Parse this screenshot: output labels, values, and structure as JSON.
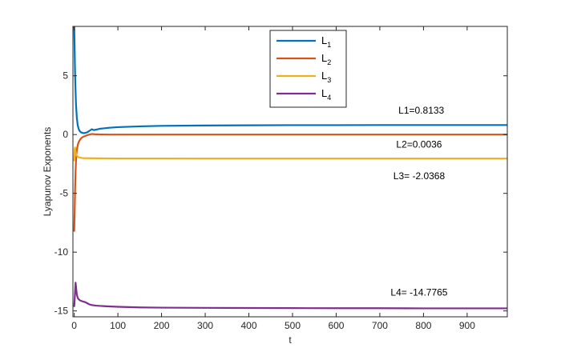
{
  "chart_data": {
    "type": "line",
    "xlabel": "t",
    "ylabel": "Lyapunov Exponents",
    "xlim": [
      -3,
      992
    ],
    "ylim": [
      -15.5,
      9.2
    ],
    "xticks": [
      0,
      100,
      200,
      300,
      400,
      500,
      600,
      700,
      800,
      900
    ],
    "yticks": [
      -15,
      -10,
      -5,
      0,
      5
    ],
    "grid": false,
    "legend_position": "top-center",
    "series": [
      {
        "name": "L",
        "subscript": "1",
        "color": "#0072BD",
        "x": [
          0,
          2,
          4,
          6,
          8,
          10,
          12,
          15,
          18,
          22,
          26,
          30,
          35,
          40,
          45,
          50,
          60,
          80,
          100,
          150,
          200,
          300,
          400,
          500,
          600,
          700,
          800,
          900,
          992
        ],
        "y": [
          9.2,
          5.0,
          2.6,
          1.4,
          0.8,
          0.5,
          0.32,
          0.2,
          0.15,
          0.12,
          0.15,
          0.2,
          0.32,
          0.45,
          0.38,
          0.42,
          0.5,
          0.58,
          0.63,
          0.7,
          0.74,
          0.77,
          0.79,
          0.8,
          0.8,
          0.81,
          0.81,
          0.81,
          0.81
        ]
      },
      {
        "name": "L",
        "subscript": "2",
        "color": "#D95319",
        "x": [
          0,
          1,
          2,
          3,
          4,
          5,
          6,
          8,
          10,
          13,
          16,
          20,
          25,
          30,
          40,
          50,
          60,
          80,
          100,
          200,
          300,
          500,
          700,
          992
        ],
        "y": [
          -8.2,
          -6.5,
          -4.6,
          -3.2,
          -2.3,
          -1.7,
          -1.3,
          -0.9,
          -0.65,
          -0.45,
          -0.3,
          -0.2,
          -0.12,
          -0.05,
          0.05,
          0.02,
          0.01,
          0.0,
          0.0,
          0.0,
          0.0,
          0.0,
          0.0,
          0.0
        ]
      },
      {
        "name": "L",
        "subscript": "3",
        "color": "#EDB120",
        "x": [
          0,
          1,
          2,
          3,
          4,
          5,
          7,
          9,
          12,
          16,
          20,
          30,
          50,
          100,
          200,
          300,
          500,
          700,
          992
        ],
        "y": [
          -2.2,
          -1.3,
          -1.1,
          -1.4,
          -1.6,
          -1.75,
          -1.85,
          -1.9,
          -1.95,
          -1.98,
          -2.0,
          -2.01,
          -2.02,
          -2.03,
          -2.03,
          -2.04,
          -2.04,
          -2.04,
          -2.04
        ]
      },
      {
        "name": "L",
        "subscript": "4",
        "color": "#7E2F8E",
        "x": [
          0,
          1,
          2,
          3,
          4,
          5,
          6,
          8,
          10,
          13,
          16,
          20,
          25,
          30,
          35,
          40,
          50,
          70,
          100,
          150,
          200,
          300,
          400,
          500,
          600,
          700,
          800,
          900,
          992
        ],
        "y": [
          -14.6,
          -14.0,
          -13.3,
          -12.6,
          -12.9,
          -13.3,
          -13.6,
          -13.9,
          -14.0,
          -14.1,
          -14.15,
          -14.2,
          -14.25,
          -14.35,
          -14.45,
          -14.5,
          -14.55,
          -14.6,
          -14.65,
          -14.7,
          -14.72,
          -14.74,
          -14.75,
          -14.76,
          -14.77,
          -14.77,
          -14.78,
          -14.78,
          -14.78
        ]
      }
    ],
    "annotations": [
      {
        "text": "L1=0.8133",
        "x": 795,
        "y": 1.8
      },
      {
        "text": "L2=0.0036",
        "x": 790,
        "y": -1.1
      },
      {
        "text": "L3= -2.0368",
        "x": 790,
        "y": -3.8
      },
      {
        "text": "L4= -14.7765",
        "x": 790,
        "y": -13.7
      }
    ]
  }
}
